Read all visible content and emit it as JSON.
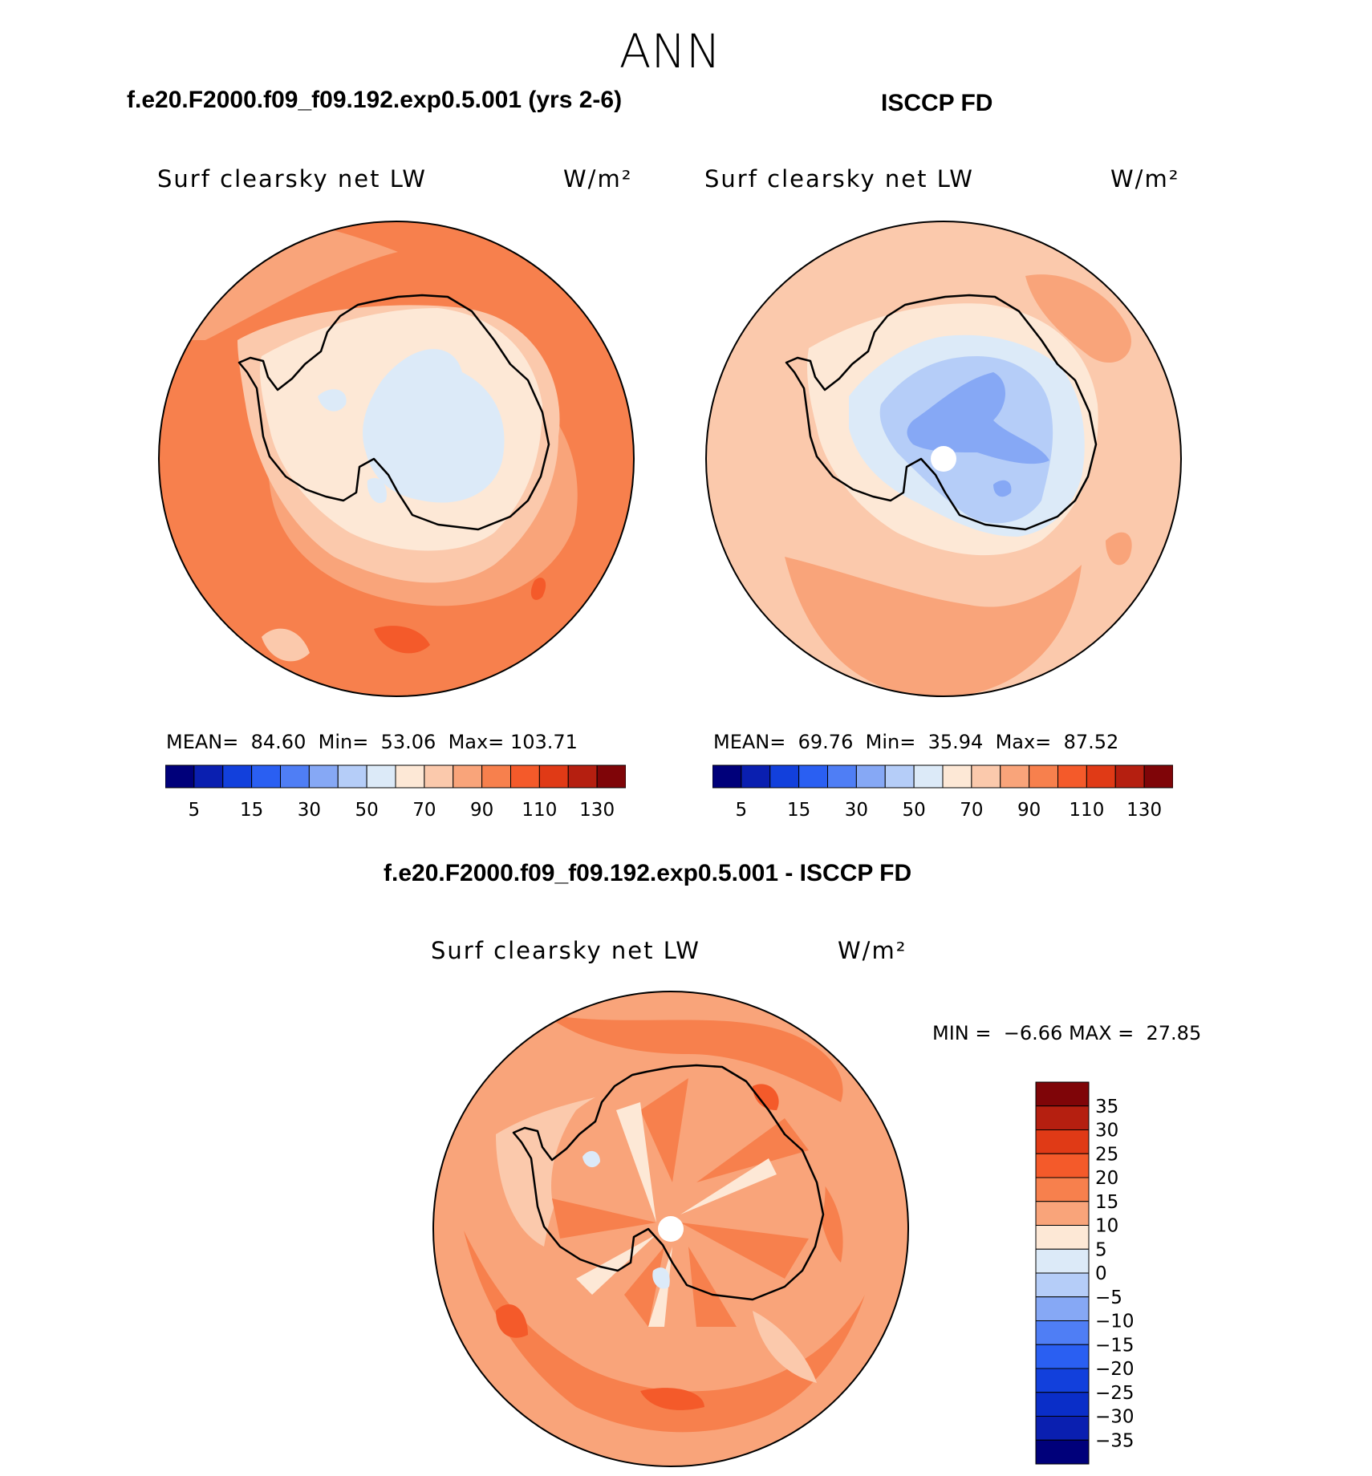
{
  "figure": {
    "season": "ANN"
  },
  "panels": [
    {
      "case_title": "f.e20.F2000.f09_f09.192.exp0.5.001 (yrs 2-6)",
      "variable": "Surf clearsky net LW",
      "units": "W/m²",
      "stats": {
        "mean_label": "MEAN=",
        "mean": "84.60",
        "min_label": "Min=",
        "min": "53.06",
        "max_label": "Max=",
        "max": "103.71"
      }
    },
    {
      "case_title": "ISCCP FD",
      "variable": "Surf clearsky net LW",
      "units": "W/m²",
      "stats": {
        "mean_label": "MEAN=",
        "mean": "69.76",
        "min_label": "Min=",
        "min": "35.94",
        "max_label": "Max=",
        "max": "87.52"
      }
    },
    {
      "case_title": "f.e20.F2000.f09_f09.192.exp0.5.001 - ISCCP FD",
      "variable": "Surf clearsky net LW",
      "units": "W/m²",
      "stats": {
        "min_label": "MIN =",
        "min": "−6.66",
        "max_label": "MAX =",
        "max": "27.85"
      }
    }
  ],
  "colorbar_abs": {
    "colors": [
      "#00007a",
      "#0a1fb0",
      "#1240dc",
      "#2a5ff2",
      "#4f7ef5",
      "#86a8f5",
      "#b5cdf8",
      "#dceaf8",
      "#fde8d6",
      "#fbc9ac",
      "#f9a47a",
      "#f7804d",
      "#f45a2a",
      "#e03a16",
      "#b51f10",
      "#7f0508"
    ],
    "tick_labels": [
      "5",
      "15",
      "30",
      "50",
      "70",
      "90",
      "110",
      "130"
    ]
  },
  "colorbar_diff": {
    "colors": [
      "#7f0508",
      "#b51f10",
      "#e03a16",
      "#f45a2a",
      "#f7804d",
      "#f9a47a",
      "#fde8d6",
      "#dceaf8",
      "#b5cdf8",
      "#86a8f5",
      "#4f7ef5",
      "#2a5ff2",
      "#1240dc",
      "#0a2ec8",
      "#0a1fb0",
      "#00007a"
    ],
    "tick_labels": [
      "35",
      "30",
      "25",
      "20",
      "15",
      "10",
      "5",
      "0",
      "−5",
      "−10",
      "−15",
      "−20",
      "−25",
      "−30",
      "−35"
    ]
  },
  "map_colors": {
    "c_5": "#dceaf8",
    "c_m5": "#b5cdf8",
    "c_m10": "#86a8f5",
    "c_0": "#fde8d6",
    "c_10": "#fbc9ac",
    "c_15": "#f9a47a",
    "c_20": "#f7804d",
    "c_25": "#f45a2a",
    "c_30": "#e03a16"
  }
}
